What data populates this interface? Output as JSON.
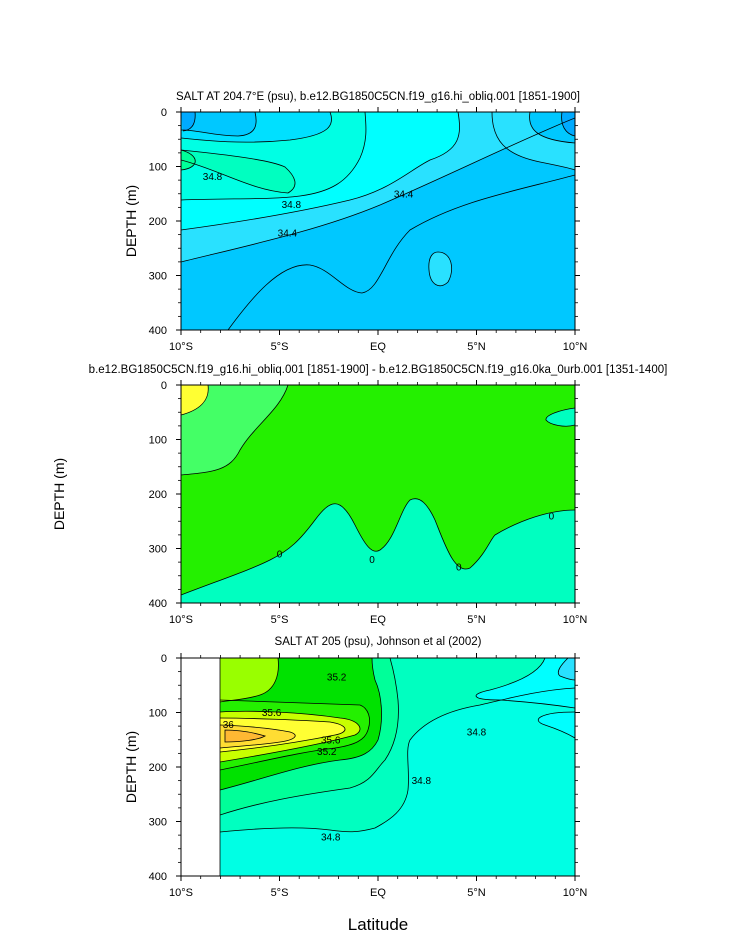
{
  "colors": {
    "deep_blue": "#00aaff",
    "blue2": "#00c8ff",
    "cyan_blue": "#29e1ff",
    "cyan": "#00ffff",
    "aqua": "#00ffe4",
    "teal": "#00ffc0",
    "seafoam": "#00ff99",
    "green_pale": "#44ff66",
    "green": "#24f000",
    "green_dark": "#00e200",
    "lime": "#99ff00",
    "yellowgreen": "#c8ff00",
    "yellow": "#ffff33",
    "gold": "#ffdd33",
    "orange": "#ffb833"
  },
  "xlabel": "Latitude",
  "chart_data": [
    {
      "type": "contour",
      "title": "SALT AT 204.7°E (psu), b.e12.BG1850C5CN.f19_g16.hi_obliq.001 [1851-1900]",
      "ylabel": "DEPTH (m)",
      "xlim": [
        -10,
        10
      ],
      "ylim": [
        400,
        0
      ],
      "yticks": [
        0,
        100,
        200,
        300,
        400
      ],
      "xticks": [
        "10°S",
        "5°S",
        "EQ",
        "5°N",
        "10°N"
      ],
      "variable": "salinity (psu)",
      "contour_labels": [
        {
          "text": "34.8",
          "lat": -8.4,
          "depth": 118
        },
        {
          "text": "34.8",
          "lat": -4.4,
          "depth": 170
        },
        {
          "text": "34.4",
          "lat": -4.6,
          "depth": 222
        },
        {
          "text": "34.4",
          "lat": 1.3,
          "depth": 150
        }
      ]
    },
    {
      "type": "contour",
      "title": "b.e12.BG1850C5CN.f19_g16.hi_obliq.001 [1851-1900] - b.e12.BG1850C5CN.f19_g16.0ka_0urb.001 [1351-1400]",
      "ylabel": "DEPTH (m)",
      "xlim": [
        -10,
        10
      ],
      "ylim": [
        400,
        0
      ],
      "yticks": [
        0,
        100,
        200,
        300,
        400
      ],
      "xticks": [
        "10°S",
        "5°S",
        "EQ",
        "5°N",
        "10°N"
      ],
      "variable": "salinity difference (psu)",
      "contour_labels": [
        {
          "text": "0",
          "lat": -5.0,
          "depth": 310
        },
        {
          "text": "0",
          "lat": -0.3,
          "depth": 320
        },
        {
          "text": "0",
          "lat": 4.1,
          "depth": 334
        },
        {
          "text": "0",
          "lat": 8.8,
          "depth": 240
        }
      ]
    },
    {
      "type": "contour",
      "title": "SALT AT 205 (psu), Johnson et al (2002)",
      "ylabel": "DEPTH (m)",
      "xlim": [
        -10,
        10
      ],
      "ylim": [
        400,
        0
      ],
      "yticks": [
        0,
        100,
        200,
        300,
        400
      ],
      "xticks": [
        "10°S",
        "5°S",
        "EQ",
        "5°N",
        "10°N"
      ],
      "variable": "salinity (psu)",
      "data_start_lat": -8,
      "contour_labels": [
        {
          "text": "36",
          "lat": -7.6,
          "depth": 122
        },
        {
          "text": "35.6",
          "lat": -5.4,
          "depth": 100
        },
        {
          "text": "35.6",
          "lat": -2.4,
          "depth": 150
        },
        {
          "text": "35.2",
          "lat": -2.6,
          "depth": 172
        },
        {
          "text": "35.2",
          "lat": -2.1,
          "depth": 35
        },
        {
          "text": "34.8",
          "lat": 5.0,
          "depth": 136
        },
        {
          "text": "34.8",
          "lat": 2.2,
          "depth": 225
        },
        {
          "text": "34.8",
          "lat": -2.4,
          "depth": 328
        }
      ]
    }
  ]
}
